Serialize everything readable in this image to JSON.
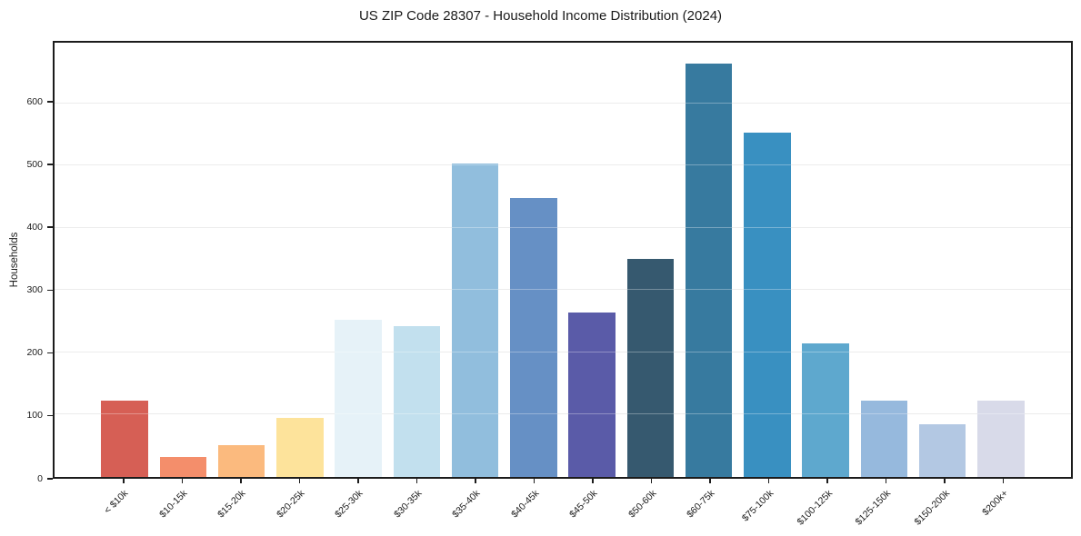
{
  "title": "US ZIP Code 28307 - Household Income Distribution (2024)",
  "chart_data": {
    "type": "bar",
    "title": "US ZIP Code 28307 - Household Income Distribution (2024)",
    "xlabel": "",
    "ylabel": "Households",
    "categories": [
      "< $10k",
      "$10-15k",
      "$15-20k",
      "$20-25k",
      "$25-30k",
      "$30-35k",
      "$35-40k",
      "$40-45k",
      "$45-50k",
      "$50-60k",
      "$60-75k",
      "$75-100k",
      "$100-125k",
      "$125-150k",
      "$150-200k",
      "$200k+"
    ],
    "values": [
      122,
      32,
      51,
      95,
      253,
      242,
      503,
      448,
      264,
      350,
      664,
      552,
      215,
      122,
      85,
      122
    ],
    "bar_colors": [
      "#d65f55",
      "#f48e6b",
      "#fbba7e",
      "#fde39b",
      "#e6f2f8",
      "#c2e0ee",
      "#91bedd",
      "#6690c5",
      "#5a5ba8",
      "#36596f",
      "#377a9f",
      "#3990c1",
      "#5ea8ce",
      "#96b9dd",
      "#b3c8e3",
      "#d8dae9"
    ],
    "ylim": [
      0,
      697
    ],
    "yticks": [
      0,
      100,
      200,
      300,
      400,
      500,
      600
    ],
    "grid": "horizontal",
    "legend": "none",
    "background_color": "#ffffff",
    "axis_color": "#1c1c1c",
    "gridline_color": "#e4e4e4"
  }
}
